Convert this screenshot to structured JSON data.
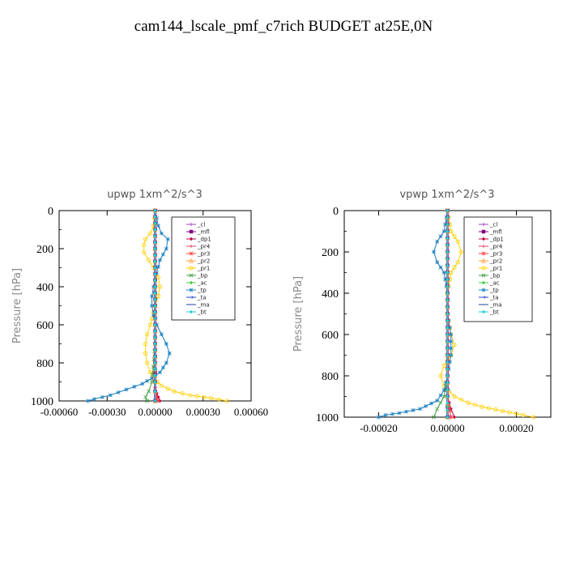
{
  "figure_title": "cam144_lscale_pmf_c7rich  BUDGET at25E,0N",
  "chart_data": [
    {
      "type": "line",
      "title": "upwp   1xm^2/s^3",
      "ylabel": "Pressure [hPa]",
      "xlim": [
        -0.0006,
        0.0006
      ],
      "ylim": [
        1000,
        0
      ],
      "xticks": [
        -0.0006,
        -0.0003,
        0.0,
        0.0003,
        0.0006
      ],
      "xtick_labels": [
        "-0.00060",
        "-0.00030",
        "0.00000",
        "0.00030",
        "0.00060"
      ],
      "yticks": [
        0,
        200,
        400,
        600,
        800,
        1000
      ],
      "ytick_labels": [
        "0",
        "200",
        "400",
        "600",
        "800",
        "1000"
      ],
      "legend_position": "top-right",
      "series": [
        {
          "name": "_cl",
          "color": "#a040c0",
          "marker": "+",
          "x": [
            0,
            0,
            0,
            0,
            0,
            0,
            0,
            0,
            0,
            0,
            0,
            0,
            0
          ],
          "y": [
            0,
            100,
            200,
            300,
            400,
            500,
            600,
            700,
            800,
            850,
            900,
            950,
            1000
          ]
        },
        {
          "name": "_mfl",
          "color": "#800080",
          "marker": "square",
          "x": [
            0,
            0,
            0,
            0,
            0,
            0,
            0,
            0,
            0,
            0,
            0,
            0,
            0
          ],
          "y": [
            0,
            100,
            200,
            300,
            400,
            500,
            600,
            700,
            800,
            850,
            900,
            950,
            1000
          ]
        },
        {
          "name": "_dp1",
          "color": "#c00040",
          "marker": "diamond",
          "x": [
            0,
            0,
            0,
            0,
            0,
            0,
            0,
            0,
            0,
            0,
            0,
            0,
            1e-05,
            2e-05,
            3e-05
          ],
          "y": [
            0,
            100,
            200,
            300,
            400,
            500,
            600,
            700,
            800,
            850,
            900,
            930,
            960,
            980,
            1000
          ]
        },
        {
          "name": "_pr4",
          "color": "#e04060",
          "marker": "+",
          "x": [
            0,
            0,
            0,
            0,
            0,
            0,
            0,
            0,
            0,
            0,
            0,
            1e-05
          ],
          "y": [
            0,
            100,
            200,
            300,
            400,
            500,
            600,
            700,
            800,
            900,
            950,
            1000
          ]
        },
        {
          "name": "_pr3",
          "color": "#ff4040",
          "marker": "star",
          "x": [
            0,
            0,
            0,
            0,
            0,
            0,
            0,
            0,
            0,
            0,
            0,
            2e-05
          ],
          "y": [
            0,
            100,
            200,
            300,
            400,
            500,
            600,
            700,
            800,
            900,
            950,
            1000
          ]
        },
        {
          "name": "_pr2",
          "color": "#ffa040",
          "marker": "triangle",
          "x": [
            0,
            0,
            0,
            0,
            0,
            0,
            0,
            0,
            0,
            0,
            0,
            0
          ],
          "y": [
            0,
            100,
            200,
            300,
            400,
            500,
            600,
            700,
            800,
            900,
            950,
            1000
          ]
        },
        {
          "name": "_pr1",
          "color": "#ffd000",
          "marker": "circle",
          "x": [
            0,
            -1e-05,
            -3e-05,
            -6e-05,
            -7e-05,
            -7e-05,
            -4e-05,
            -1e-05,
            2e-05,
            3e-05,
            2e-05,
            0,
            -3e-05,
            -5e-05,
            -6e-05,
            -6e-05,
            -5e-05,
            -3e-05,
            -1e-05,
            4e-05,
            0.00012,
            0.00022,
            0.00035,
            0.00045
          ],
          "y": [
            0,
            80,
            120,
            150,
            180,
            220,
            260,
            300,
            350,
            400,
            450,
            500,
            600,
            650,
            700,
            750,
            800,
            850,
            880,
            920,
            950,
            970,
            985,
            1000
          ]
        },
        {
          "name": "_bp",
          "color": "#40a040",
          "marker": "x",
          "x": [
            0,
            0,
            0,
            0,
            0,
            0,
            0,
            0,
            -2e-05,
            -4e-05,
            -6e-05,
            -5e-05
          ],
          "y": [
            0,
            100,
            200,
            300,
            400,
            500,
            600,
            700,
            900,
            950,
            980,
            1000
          ]
        },
        {
          "name": "_ac",
          "color": "#40d040",
          "marker": "diamond",
          "x": [
            0,
            0,
            0,
            0,
            0,
            0,
            0,
            0,
            0,
            0,
            0,
            0
          ],
          "y": [
            0,
            100,
            200,
            300,
            400,
            500,
            600,
            700,
            800,
            900,
            950,
            1000
          ]
        },
        {
          "name": "_tp",
          "color": "#1a80c0",
          "marker": "star",
          "x": [
            0,
            2e-05,
            4e-05,
            8e-05,
            7e-05,
            3e-05,
            1e-05,
            -1e-05,
            -2e-05,
            -2e-05,
            -1e-05,
            1e-05,
            4e-05,
            7e-05,
            9e-05,
            7e-05,
            3e-05,
            -2e-05,
            -8e-05,
            -0.00018,
            -0.00028,
            -0.00038,
            -0.00042
          ],
          "y": [
            0,
            80,
            120,
            150,
            200,
            260,
            330,
            400,
            450,
            500,
            550,
            600,
            650,
            700,
            750,
            800,
            850,
            880,
            910,
            940,
            970,
            990,
            1000
          ]
        },
        {
          "name": "_ta",
          "color": "#2040d0",
          "marker": "arrow",
          "x": [
            0,
            0,
            0,
            0,
            0,
            0,
            0,
            0,
            0,
            0,
            0,
            0
          ],
          "y": [
            0,
            100,
            200,
            300,
            400,
            500,
            600,
            700,
            800,
            900,
            950,
            1000
          ]
        },
        {
          "name": "_ma",
          "color": "#2040a0",
          "marker": "dash",
          "x": [
            0,
            0,
            0,
            0,
            0,
            0,
            0,
            0,
            0,
            0,
            0,
            0
          ],
          "y": [
            0,
            100,
            200,
            300,
            400,
            500,
            600,
            700,
            800,
            900,
            950,
            1000
          ]
        },
        {
          "name": "_bt",
          "color": "#20d0d0",
          "marker": "diamond",
          "x": [
            0,
            0,
            0,
            0,
            0,
            0,
            0,
            0,
            0,
            0,
            0,
            0
          ],
          "y": [
            0,
            100,
            200,
            300,
            400,
            500,
            600,
            700,
            800,
            900,
            950,
            1000
          ]
        }
      ]
    },
    {
      "type": "line",
      "title": "vpwp   1xm^2/s^3",
      "ylabel": "Pressure [hPa]",
      "xlim": [
        -0.0003,
        0.0003
      ],
      "ylim": [
        1000,
        0
      ],
      "xticks": [
        -0.0002,
        0.0,
        0.0002
      ],
      "xtick_labels": [
        "-0.00020",
        "0.00000",
        "0.00020"
      ],
      "yticks": [
        0,
        200,
        400,
        600,
        800,
        1000
      ],
      "ytick_labels": [
        "0",
        "200",
        "400",
        "600",
        "800",
        "1000"
      ],
      "legend_position": "top-right",
      "series": [
        {
          "name": "_cl",
          "color": "#a040c0",
          "marker": "+",
          "x": [
            0,
            0,
            0,
            0,
            0,
            0,
            0,
            0,
            0,
            0,
            0,
            0
          ],
          "y": [
            0,
            100,
            200,
            300,
            400,
            500,
            600,
            700,
            800,
            900,
            950,
            1000
          ]
        },
        {
          "name": "_mfl",
          "color": "#800080",
          "marker": "square",
          "x": [
            0,
            0,
            0,
            0,
            0,
            0,
            0,
            0,
            0,
            0,
            0,
            0
          ],
          "y": [
            0,
            100,
            200,
            300,
            400,
            500,
            600,
            700,
            800,
            900,
            950,
            1000
          ]
        },
        {
          "name": "_dp1",
          "color": "#c00040",
          "marker": "diamond",
          "x": [
            0,
            0,
            0,
            0,
            0,
            0,
            0,
            0,
            0,
            0,
            1e-05,
            2e-05
          ],
          "y": [
            0,
            100,
            200,
            300,
            400,
            500,
            600,
            700,
            800,
            900,
            960,
            1000
          ]
        },
        {
          "name": "_pr4",
          "color": "#e04060",
          "marker": "+",
          "x": [
            0,
            0,
            0,
            0,
            0,
            0,
            0,
            0,
            0,
            0,
            1e-05
          ],
          "y": [
            0,
            100,
            200,
            300,
            400,
            500,
            600,
            700,
            800,
            900,
            1000
          ]
        },
        {
          "name": "_pr3",
          "color": "#ff4040",
          "marker": "star",
          "x": [
            0,
            0,
            0,
            0,
            0,
            0,
            0,
            0,
            0,
            0,
            1e-05
          ],
          "y": [
            0,
            100,
            200,
            300,
            400,
            500,
            600,
            700,
            800,
            900,
            1000
          ]
        },
        {
          "name": "_pr2",
          "color": "#ffa040",
          "marker": "triangle",
          "x": [
            0,
            0,
            0,
            0,
            0,
            0,
            0,
            0,
            0,
            0,
            0
          ],
          "y": [
            0,
            100,
            200,
            300,
            400,
            500,
            600,
            700,
            800,
            900,
            1000
          ]
        },
        {
          "name": "_pr1",
          "color": "#ffd000",
          "marker": "circle",
          "x": [
            0,
            1e-05,
            3e-05,
            4e-05,
            3e-05,
            1e-05,
            0,
            0,
            1e-05,
            2e-05,
            1e-05,
            -1e-05,
            -2e-05,
            -1e-05,
            2e-05,
            6e-05,
            0.0001,
            0.00016,
            0.00022,
            0.00025
          ],
          "y": [
            0,
            100,
            150,
            200,
            250,
            300,
            400,
            500,
            600,
            650,
            700,
            750,
            800,
            850,
            900,
            930,
            950,
            970,
            990,
            1000
          ]
        },
        {
          "name": "_bp",
          "color": "#40a040",
          "marker": "x",
          "x": [
            0,
            0,
            0,
            0,
            0,
            0,
            0,
            0,
            0,
            -1e-05,
            -3e-05,
            -4e-05
          ],
          "y": [
            0,
            100,
            200,
            300,
            400,
            500,
            600,
            700,
            800,
            900,
            960,
            1000
          ]
        },
        {
          "name": "_ac",
          "color": "#40d040",
          "marker": "diamond",
          "x": [
            0,
            0,
            0,
            0,
            0,
            0,
            0,
            0,
            0,
            0,
            0,
            0
          ],
          "y": [
            0,
            100,
            200,
            300,
            400,
            500,
            600,
            700,
            800,
            900,
            950,
            1000
          ]
        },
        {
          "name": "_tp",
          "color": "#1a80c0",
          "marker": "star",
          "x": [
            0,
            -1e-05,
            -3e-05,
            -4e-05,
            -3e-05,
            -1e-05,
            0,
            0,
            1e-05,
            1e-05,
            0,
            -1e-05,
            -3e-05,
            -8e-05,
            -0.00014,
            -0.00018,
            -0.0002
          ],
          "y": [
            0,
            100,
            150,
            200,
            250,
            300,
            400,
            500,
            600,
            700,
            800,
            870,
            920,
            960,
            980,
            990,
            1000
          ]
        },
        {
          "name": "_ta",
          "color": "#2040d0",
          "marker": "arrow",
          "x": [
            0,
            0,
            0,
            0,
            0,
            0,
            0,
            0,
            0,
            0,
            0
          ],
          "y": [
            0,
            100,
            200,
            300,
            400,
            500,
            600,
            700,
            800,
            900,
            1000
          ]
        },
        {
          "name": "_ma",
          "color": "#2040a0",
          "marker": "dash",
          "x": [
            0,
            0,
            0,
            0,
            0,
            0,
            0,
            0,
            0,
            0,
            0
          ],
          "y": [
            0,
            100,
            200,
            300,
            400,
            500,
            600,
            700,
            800,
            900,
            1000
          ]
        },
        {
          "name": "_bt",
          "color": "#20d0d0",
          "marker": "diamond",
          "x": [
            0,
            0,
            0,
            0,
            0,
            0,
            0,
            0,
            0,
            0,
            0
          ],
          "y": [
            0,
            100,
            200,
            300,
            400,
            500,
            600,
            700,
            800,
            900,
            1000
          ]
        }
      ]
    }
  ]
}
